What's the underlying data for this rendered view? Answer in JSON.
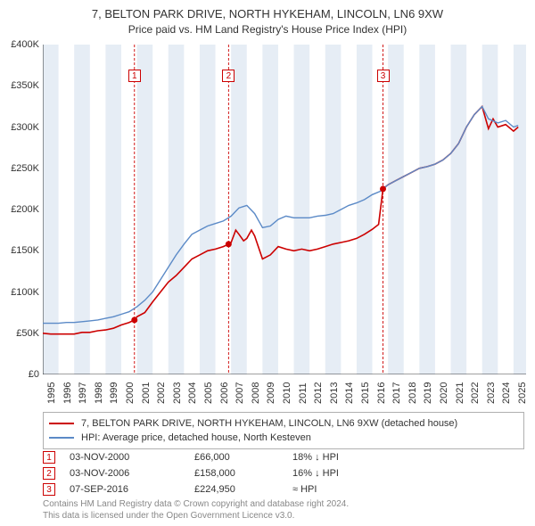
{
  "title": "7, BELTON PARK DRIVE, NORTH HYKEHAM, LINCOLN, LN6 9XW",
  "subtitle": "Price paid vs. HM Land Registry's House Price Index (HPI)",
  "chart": {
    "type": "line",
    "background_color": "#ffffff",
    "band_color": "#e6edf5",
    "axis_color": "#000000",
    "x": {
      "min": 1995,
      "max": 2025.8,
      "ticks": [
        "1995",
        "1996",
        "1997",
        "1998",
        "1999",
        "2000",
        "2001",
        "2002",
        "2003",
        "2004",
        "2005",
        "2006",
        "2007",
        "2008",
        "2009",
        "2010",
        "2011",
        "2012",
        "2013",
        "2014",
        "2015",
        "2016",
        "2017",
        "2018",
        "2019",
        "2020",
        "2021",
        "2022",
        "2023",
        "2024",
        "2025"
      ]
    },
    "y": {
      "min": 0,
      "max": 400000,
      "step": 50000,
      "labels": [
        "£0",
        "£50K",
        "£100K",
        "£150K",
        "£200K",
        "£250K",
        "£300K",
        "£350K",
        "£400K"
      ]
    },
    "bands": [
      [
        1995,
        1996
      ],
      [
        1997,
        1998
      ],
      [
        1999,
        2000
      ],
      [
        2001,
        2002
      ],
      [
        2003,
        2004
      ],
      [
        2005,
        2006
      ],
      [
        2007,
        2008
      ],
      [
        2009,
        2010
      ],
      [
        2011,
        2012
      ],
      [
        2013,
        2014
      ],
      [
        2015,
        2016
      ],
      [
        2017,
        2018
      ],
      [
        2019,
        2020
      ],
      [
        2021,
        2022
      ],
      [
        2023,
        2024
      ],
      [
        2025,
        2025.8
      ]
    ],
    "markers": [
      {
        "n": "1",
        "x": 2000.84,
        "y": 66000
      },
      {
        "n": "2",
        "x": 2006.84,
        "y": 158000
      },
      {
        "n": "3",
        "x": 2016.68,
        "y": 224950
      }
    ],
    "marker_color": "#cc0000",
    "series": [
      {
        "name": "7, BELTON PARK DRIVE, NORTH HYKEHAM, LINCOLN, LN6 9XW (detached house)",
        "color": "#cc0000",
        "data": [
          [
            1995.0,
            50000
          ],
          [
            1995.5,
            49000
          ],
          [
            1996.0,
            49000
          ],
          [
            1996.5,
            49000
          ],
          [
            1997.0,
            49000
          ],
          [
            1997.5,
            51000
          ],
          [
            1998.0,
            51000
          ],
          [
            1998.5,
            53000
          ],
          [
            1999.0,
            54000
          ],
          [
            1999.5,
            56000
          ],
          [
            2000.0,
            60000
          ],
          [
            2000.5,
            63000
          ],
          [
            2000.84,
            66000
          ],
          [
            2001.0,
            70000
          ],
          [
            2001.5,
            75000
          ],
          [
            2002.0,
            88000
          ],
          [
            2002.5,
            100000
          ],
          [
            2003.0,
            112000
          ],
          [
            2003.5,
            120000
          ],
          [
            2004.0,
            130000
          ],
          [
            2004.5,
            140000
          ],
          [
            2005.0,
            145000
          ],
          [
            2005.5,
            150000
          ],
          [
            2006.0,
            152000
          ],
          [
            2006.5,
            155000
          ],
          [
            2006.84,
            158000
          ],
          [
            2007.0,
            160000
          ],
          [
            2007.3,
            175000
          ],
          [
            2007.5,
            170000
          ],
          [
            2007.8,
            162000
          ],
          [
            2008.0,
            165000
          ],
          [
            2008.3,
            175000
          ],
          [
            2008.5,
            168000
          ],
          [
            2009.0,
            140000
          ],
          [
            2009.5,
            145000
          ],
          [
            2010.0,
            155000
          ],
          [
            2010.5,
            152000
          ],
          [
            2011.0,
            150000
          ],
          [
            2011.5,
            152000
          ],
          [
            2012.0,
            150000
          ],
          [
            2012.5,
            152000
          ],
          [
            2013.0,
            155000
          ],
          [
            2013.5,
            158000
          ],
          [
            2014.0,
            160000
          ],
          [
            2014.5,
            162000
          ],
          [
            2015.0,
            165000
          ],
          [
            2015.5,
            170000
          ],
          [
            2016.0,
            176000
          ],
          [
            2016.4,
            182000
          ],
          [
            2016.68,
            224950
          ],
          [
            2017.0,
            230000
          ],
          [
            2017.5,
            235000
          ],
          [
            2018.0,
            240000
          ],
          [
            2018.5,
            245000
          ],
          [
            2019.0,
            250000
          ],
          [
            2019.5,
            252000
          ],
          [
            2020.0,
            255000
          ],
          [
            2020.5,
            260000
          ],
          [
            2021.0,
            268000
          ],
          [
            2021.5,
            280000
          ],
          [
            2022.0,
            300000
          ],
          [
            2022.5,
            315000
          ],
          [
            2023.0,
            325000
          ],
          [
            2023.4,
            298000
          ],
          [
            2023.7,
            310000
          ],
          [
            2024.0,
            300000
          ],
          [
            2024.5,
            303000
          ],
          [
            2025.0,
            295000
          ],
          [
            2025.3,
            300000
          ]
        ]
      },
      {
        "name": "HPI: Average price, detached house, North Kesteven",
        "color": "#5b8ac7",
        "data": [
          [
            1995.0,
            62000
          ],
          [
            1995.5,
            62000
          ],
          [
            1996.0,
            62000
          ],
          [
            1996.5,
            63000
          ],
          [
            1997.0,
            63000
          ],
          [
            1997.5,
            64000
          ],
          [
            1998.0,
            65000
          ],
          [
            1998.5,
            66000
          ],
          [
            1999.0,
            68000
          ],
          [
            1999.5,
            70000
          ],
          [
            2000.0,
            73000
          ],
          [
            2000.5,
            76000
          ],
          [
            2001.0,
            82000
          ],
          [
            2001.5,
            90000
          ],
          [
            2002.0,
            100000
          ],
          [
            2002.5,
            115000
          ],
          [
            2003.0,
            130000
          ],
          [
            2003.5,
            145000
          ],
          [
            2004.0,
            158000
          ],
          [
            2004.5,
            170000
          ],
          [
            2005.0,
            175000
          ],
          [
            2005.5,
            180000
          ],
          [
            2006.0,
            183000
          ],
          [
            2006.5,
            186000
          ],
          [
            2007.0,
            192000
          ],
          [
            2007.5,
            202000
          ],
          [
            2008.0,
            205000
          ],
          [
            2008.5,
            195000
          ],
          [
            2009.0,
            178000
          ],
          [
            2009.5,
            180000
          ],
          [
            2010.0,
            188000
          ],
          [
            2010.5,
            192000
          ],
          [
            2011.0,
            190000
          ],
          [
            2011.5,
            190000
          ],
          [
            2012.0,
            190000
          ],
          [
            2012.5,
            192000
          ],
          [
            2013.0,
            193000
          ],
          [
            2013.5,
            195000
          ],
          [
            2014.0,
            200000
          ],
          [
            2014.5,
            205000
          ],
          [
            2015.0,
            208000
          ],
          [
            2015.5,
            212000
          ],
          [
            2016.0,
            218000
          ],
          [
            2016.5,
            222000
          ],
          [
            2017.0,
            230000
          ],
          [
            2017.5,
            235000
          ],
          [
            2018.0,
            240000
          ],
          [
            2018.5,
            245000
          ],
          [
            2019.0,
            250000
          ],
          [
            2019.5,
            252000
          ],
          [
            2020.0,
            255000
          ],
          [
            2020.5,
            260000
          ],
          [
            2021.0,
            268000
          ],
          [
            2021.5,
            280000
          ],
          [
            2022.0,
            300000
          ],
          [
            2022.5,
            315000
          ],
          [
            2023.0,
            325000
          ],
          [
            2023.4,
            310000
          ],
          [
            2024.0,
            305000
          ],
          [
            2024.5,
            308000
          ],
          [
            2025.0,
            300000
          ],
          [
            2025.3,
            302000
          ]
        ]
      }
    ]
  },
  "legend": [
    {
      "color": "#cc0000",
      "label": "7, BELTON PARK DRIVE, NORTH HYKEHAM, LINCOLN, LN6 9XW (detached house)"
    },
    {
      "color": "#5b8ac7",
      "label": "HPI: Average price, detached house, North Kesteven"
    }
  ],
  "transactions": [
    {
      "n": "1",
      "date": "03-NOV-2000",
      "price": "£66,000",
      "diff": "18% ↓ HPI"
    },
    {
      "n": "2",
      "date": "03-NOV-2006",
      "price": "£158,000",
      "diff": "16% ↓ HPI"
    },
    {
      "n": "3",
      "date": "07-SEP-2016",
      "price": "£224,950",
      "diff": "≈ HPI"
    }
  ],
  "footer1": "Contains HM Land Registry data © Crown copyright and database right 2024.",
  "footer2": "This data is licensed under the Open Government Licence v3.0."
}
